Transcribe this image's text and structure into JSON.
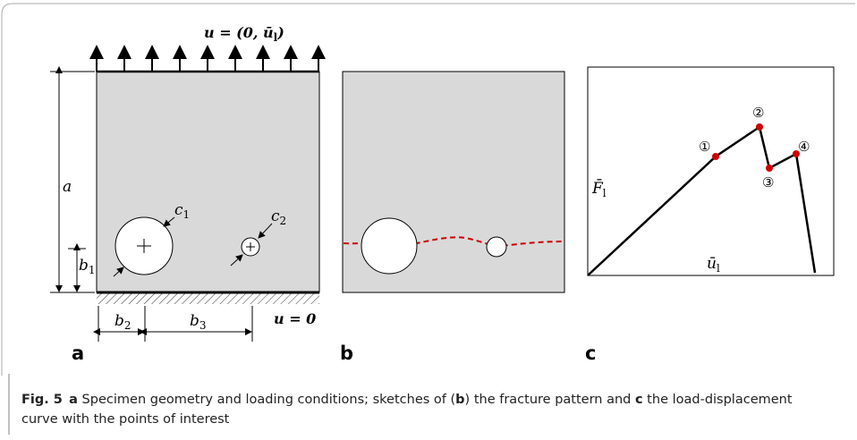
{
  "panel_a": {
    "load": {
      "main": "u = (0, ū",
      "sub": "l",
      "end": ")"
    },
    "dim_a": "a",
    "dim_b1": {
      "main": "b",
      "sub": "1"
    },
    "dim_b2": {
      "main": "b",
      "sub": "2"
    },
    "dim_b3": {
      "main": "b",
      "sub": "3"
    },
    "hole_c1": {
      "main": "c",
      "sub": "1"
    },
    "hole_c2": {
      "main": "c",
      "sub": "2"
    },
    "support": "u = 0",
    "label": "a"
  },
  "panel_b": {
    "label": "b"
  },
  "panel_c": {
    "y_label": {
      "main": "F̄",
      "sub": "l"
    },
    "x_label": {
      "main": "ū",
      "sub": "l"
    },
    "points": [
      "①",
      "②",
      "③",
      "④"
    ],
    "label": "c"
  },
  "caption": {
    "number": "Fig. 5",
    "parts": [
      {
        "text": "a",
        "bold": true
      },
      {
        "text": " Specimen geometry and loading conditions; sketches of (",
        "bold": false
      },
      {
        "text": "b",
        "bold": true
      },
      {
        "text": ") the fracture pattern and ",
        "bold": false
      },
      {
        "text": "c",
        "bold": true
      },
      {
        "text": " the load-displacement curve with the points of interest",
        "bold": false
      }
    ]
  }
}
